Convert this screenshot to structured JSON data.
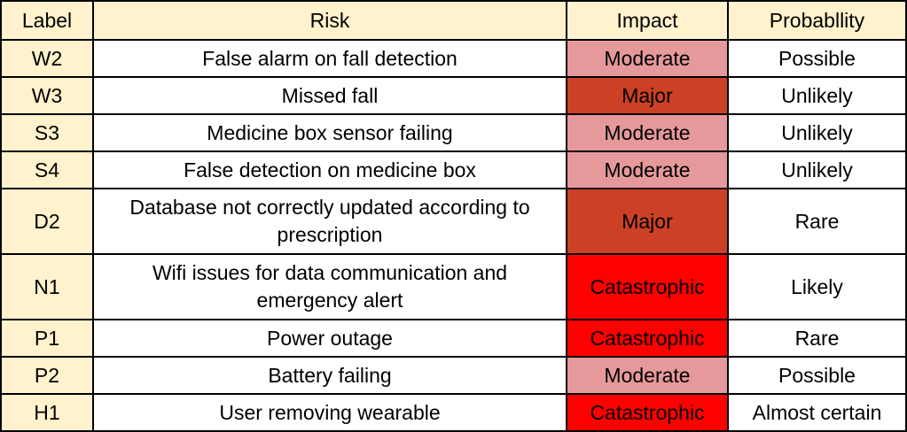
{
  "headers": {
    "label": "Label",
    "risk": "Risk",
    "impact": "Impact",
    "probability": "Probabllity"
  },
  "impact_colors": {
    "Moderate": "#e6999a",
    "Major": "#cc4125",
    "Catastrophic": "#ff0000"
  },
  "rows": [
    {
      "label": "W2",
      "risk": "False alarm on fall detection",
      "impact": "Moderate",
      "probability": "Possible"
    },
    {
      "label": "W3",
      "risk": "Missed fall",
      "impact": "Major",
      "probability": "Unlikely"
    },
    {
      "label": "S3",
      "risk": "Medicine box sensor failing",
      "impact": "Moderate",
      "probability": "Unlikely"
    },
    {
      "label": "S4",
      "risk": "False detection on medicine box",
      "impact": "Moderate",
      "probability": "Unlikely"
    },
    {
      "label": "D2",
      "risk": "Database not correctly updated according to prescription",
      "impact": "Major",
      "probability": "Rare"
    },
    {
      "label": "N1",
      "risk": "Wifi issues for data communication and emergency alert",
      "impact": "Catastrophic",
      "probability": "Likely"
    },
    {
      "label": "P1",
      "risk": "Power outage",
      "impact": "Catastrophic",
      "probability": "Rare"
    },
    {
      "label": "P2",
      "risk": "Battery failing",
      "impact": "Moderate",
      "probability": "Possible"
    },
    {
      "label": "H1",
      "risk": "User removing wearable",
      "impact": "Catastrophic",
      "probability": "Almost certain"
    }
  ]
}
